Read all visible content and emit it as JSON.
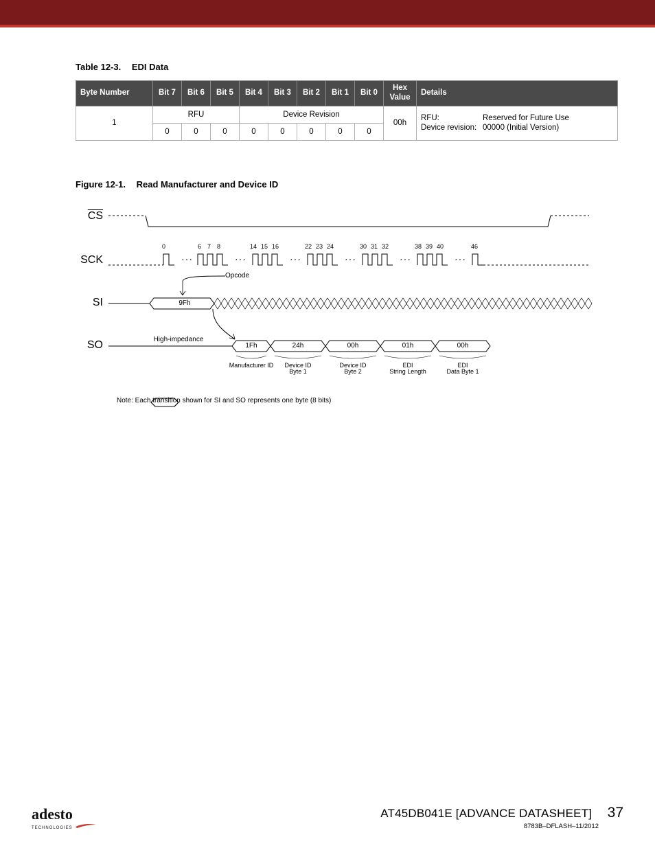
{
  "topbar": {
    "bg": "#7a1a1a",
    "accent": "#c0392b"
  },
  "table": {
    "caption_num": "Table 12-3.",
    "caption_title": "EDI Data",
    "headers": {
      "byte_number": "Byte Number",
      "bits": [
        "Bit 7",
        "Bit 6",
        "Bit 5",
        "Bit 4",
        "Bit 3",
        "Bit 2",
        "Bit 1",
        "Bit 0"
      ],
      "hex_value": "Hex Value",
      "details": "Details"
    },
    "row": {
      "byte_number": "1",
      "group_rfu": "RFU",
      "group_rev": "Device Revision",
      "bits_values": [
        "0",
        "0",
        "0",
        "0",
        "0",
        "0",
        "0",
        "0"
      ],
      "hex": "00h",
      "details": {
        "k1": "RFU:",
        "v1": "Reserved for Future Use",
        "k2": "Device revision:",
        "v2": "00000 (Initial Version)"
      }
    },
    "style": {
      "header_bg": "#4a4a4a",
      "header_fg": "#ffffff",
      "border": "#b0b0b0",
      "font_size_pt": 11.5
    }
  },
  "figure": {
    "caption_num": "Figure 12-1.",
    "caption_title": "Read Manufacturer and Device ID",
    "signals": {
      "cs": {
        "label": "CS",
        "overline": true
      },
      "sck": {
        "label": "SCK"
      },
      "si": {
        "label": "SI"
      },
      "so": {
        "label": "SO"
      }
    },
    "sck": {
      "tick_numbers": [
        "0",
        "6",
        "7",
        "8",
        "14",
        "15",
        "16",
        "22",
        "23",
        "24",
        "30",
        "31",
        "32",
        "38",
        "39",
        "40",
        "46"
      ],
      "ellipsis_segments": 6
    },
    "si": {
      "opcode_label": "Opcode",
      "opcode_value": "9Fh",
      "dont_care_after": true,
      "hi_z_text": "High-impedance"
    },
    "so": {
      "bytes": [
        {
          "value": "1Fh",
          "desc_line1": "Manufacturer ID",
          "desc_line2": ""
        },
        {
          "value": "24h",
          "desc_line1": "Device ID",
          "desc_line2": "Byte 1"
        },
        {
          "value": "00h",
          "desc_line1": "Device ID",
          "desc_line2": "Byte 2"
        },
        {
          "value": "01h",
          "desc_line1": "EDI",
          "desc_line2": "String Length"
        },
        {
          "value": "00h",
          "desc_line1": "EDI",
          "desc_line2": "Data Byte 1"
        }
      ]
    },
    "note": {
      "prefix": "Note:  Each transition",
      "suffix": "shown for SI and SO represents one byte (8 bits)"
    },
    "style": {
      "stroke": "#000000",
      "stroke_width": 1,
      "dash": "3,3",
      "font_size_labels_pt": 16,
      "font_size_ticks_pt": 9,
      "font_size_byte_pt": 10,
      "font_size_sub_pt": 9,
      "font_size_note_pt": 10
    }
  },
  "footer": {
    "logo_text": "adesto",
    "logo_sub": "TECHNOLOGIES",
    "doc_title": "AT45DB041E [ADVANCE DATASHEET]",
    "page_num": "37",
    "doc_id": "8783B–DFLASH–11/2012",
    "logo_color": "#111111",
    "swoosh_color": "#c0392b"
  }
}
